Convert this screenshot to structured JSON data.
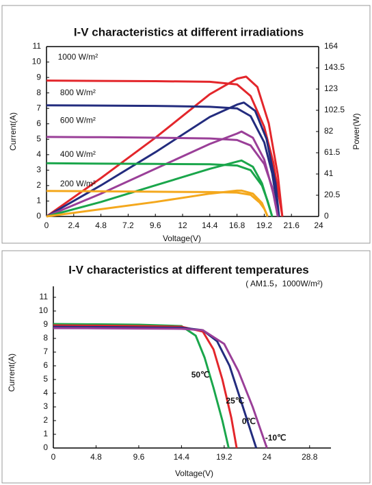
{
  "chart_data": [
    {
      "type": "line",
      "title": "I-V characteristics at different irradiations",
      "x_label": "Voltage(V)",
      "y_label": "Current(A)",
      "y2_label": "Power(W)",
      "xlim": [
        0,
        24
      ],
      "xticks": [
        0,
        2.4,
        4.8,
        7.2,
        9.6,
        12,
        14.4,
        16.8,
        19.2,
        21.6,
        24
      ],
      "ylim": [
        0,
        11
      ],
      "yticks": [
        0,
        1,
        2,
        3,
        4,
        5,
        6,
        7,
        8,
        9,
        10,
        11
      ],
      "y2lim": [
        0,
        164
      ],
      "y2ticks": [
        0,
        20.5,
        41,
        61.5,
        82,
        102.5,
        123,
        143.5,
        164
      ],
      "annotations": [
        "1000 W/m²",
        "800 W/m²",
        "600 W/m²",
        "400 W/m²",
        "200 W/m²"
      ],
      "series": [
        {
          "color": "#e3262b",
          "x": [
            0,
            4.8,
            9.6,
            14.4,
            16.8,
            18,
            19.2,
            20,
            20.8
          ],
          "values": [
            8.8,
            8.78,
            8.76,
            8.72,
            8.55,
            7.8,
            5.8,
            3.5,
            0
          ]
        },
        {
          "color": "#e3262b",
          "axis": "y2",
          "x": [
            0,
            4.8,
            9.6,
            14.4,
            16.8,
            17.6,
            18.6,
            19.6,
            20.4,
            20.8
          ],
          "values": [
            0,
            37,
            76,
            118,
            133,
            135,
            125,
            90,
            40,
            0
          ]
        },
        {
          "color": "#232c7e",
          "x": [
            0,
            4.8,
            9.6,
            14.4,
            16.8,
            18,
            19.2,
            19.9,
            20.5
          ],
          "values": [
            7.2,
            7.18,
            7.16,
            7.1,
            7.0,
            6.5,
            4.8,
            2.8,
            0
          ]
        },
        {
          "color": "#232c7e",
          "axis": "y2",
          "x": [
            0,
            4.8,
            9.6,
            14.4,
            16.8,
            17.4,
            18.4,
            19.4,
            20.2,
            20.5
          ],
          "values": [
            0,
            30,
            62,
            96,
            108,
            110,
            102,
            75,
            32,
            0
          ]
        },
        {
          "color": "#9a3f98",
          "x": [
            0,
            4.8,
            9.6,
            14.4,
            16.8,
            18,
            19.2,
            19.9,
            20.4
          ],
          "values": [
            5.15,
            5.13,
            5.1,
            5.05,
            4.95,
            4.6,
            3.4,
            1.9,
            0
          ]
        },
        {
          "color": "#9a3f98",
          "axis": "y2",
          "x": [
            0,
            4.8,
            9.6,
            14.4,
            16.8,
            17.2,
            18.2,
            19.2,
            20,
            20.4
          ],
          "values": [
            0,
            22,
            46,
            70,
            80,
            82,
            76,
            55,
            22,
            0
          ]
        },
        {
          "color": "#1aa64b",
          "x": [
            0,
            4.8,
            9.6,
            14.4,
            16.8,
            18,
            19,
            19.5,
            19.9
          ],
          "values": [
            3.45,
            3.42,
            3.4,
            3.38,
            3.3,
            3.0,
            2.0,
            1.0,
            0
          ]
        },
        {
          "color": "#1aa64b",
          "axis": "y2",
          "x": [
            0,
            4.8,
            9.6,
            14.4,
            16.8,
            17.2,
            18.2,
            19,
            19.9
          ],
          "values": [
            0,
            14,
            30,
            46,
            53,
            54,
            48,
            32,
            0
          ]
        },
        {
          "color": "#f4a81d",
          "x": [
            0,
            4.8,
            9.6,
            14.4,
            16.8,
            18,
            18.8,
            19.2,
            19.5
          ],
          "values": [
            1.65,
            1.63,
            1.6,
            1.58,
            1.55,
            1.4,
            0.9,
            0.5,
            0
          ]
        },
        {
          "color": "#f4a81d",
          "axis": "y2",
          "x": [
            0,
            4.8,
            9.6,
            14.4,
            16.8,
            17.2,
            18.2,
            19,
            19.5
          ],
          "values": [
            0,
            7,
            14,
            22,
            25,
            25,
            22,
            13,
            0
          ]
        }
      ]
    },
    {
      "type": "line",
      "title": "I-V characteristics at different temperatures",
      "subtitle": "( AM1.5，1000W/m²)",
      "x_label": "Voltage(V)",
      "y_label": "Current(A)",
      "xlim": [
        0,
        31.2
      ],
      "xticks": [
        0,
        4.8,
        9.6,
        14.4,
        19.2,
        24,
        28.8
      ],
      "ylim": [
        0,
        11.5
      ],
      "yticks": [
        0,
        1,
        2,
        3,
        4,
        5,
        6,
        7,
        8,
        9,
        10,
        11
      ],
      "annotations": [
        "50℃",
        "25℃",
        "0℃",
        "-10℃"
      ],
      "series": [
        {
          "color": "#1aa64b",
          "x": [
            0,
            4.8,
            9.6,
            14.4,
            16,
            17,
            18,
            19,
            19.7
          ],
          "values": [
            9.05,
            9.03,
            9.0,
            8.9,
            8.2,
            6.6,
            4.4,
            2.0,
            0
          ]
        },
        {
          "color": "#e3262b",
          "x": [
            0,
            4.8,
            9.6,
            14.4,
            16.8,
            18,
            19,
            20,
            20.6
          ],
          "values": [
            8.95,
            8.93,
            8.9,
            8.85,
            8.5,
            7.2,
            5.0,
            2.2,
            0
          ]
        },
        {
          "color": "#232c7e",
          "x": [
            0,
            4.8,
            9.6,
            14.4,
            16.8,
            18.4,
            19.8,
            21.2,
            22.8
          ],
          "values": [
            8.85,
            8.83,
            8.8,
            8.78,
            8.6,
            7.8,
            6.0,
            3.2,
            0
          ]
        },
        {
          "color": "#9a3f98",
          "x": [
            0,
            4.8,
            9.6,
            14.4,
            16.8,
            19.2,
            20.8,
            22.4,
            24
          ],
          "values": [
            8.75,
            8.74,
            8.72,
            8.7,
            8.6,
            7.6,
            5.6,
            3.0,
            0
          ]
        }
      ]
    }
  ]
}
